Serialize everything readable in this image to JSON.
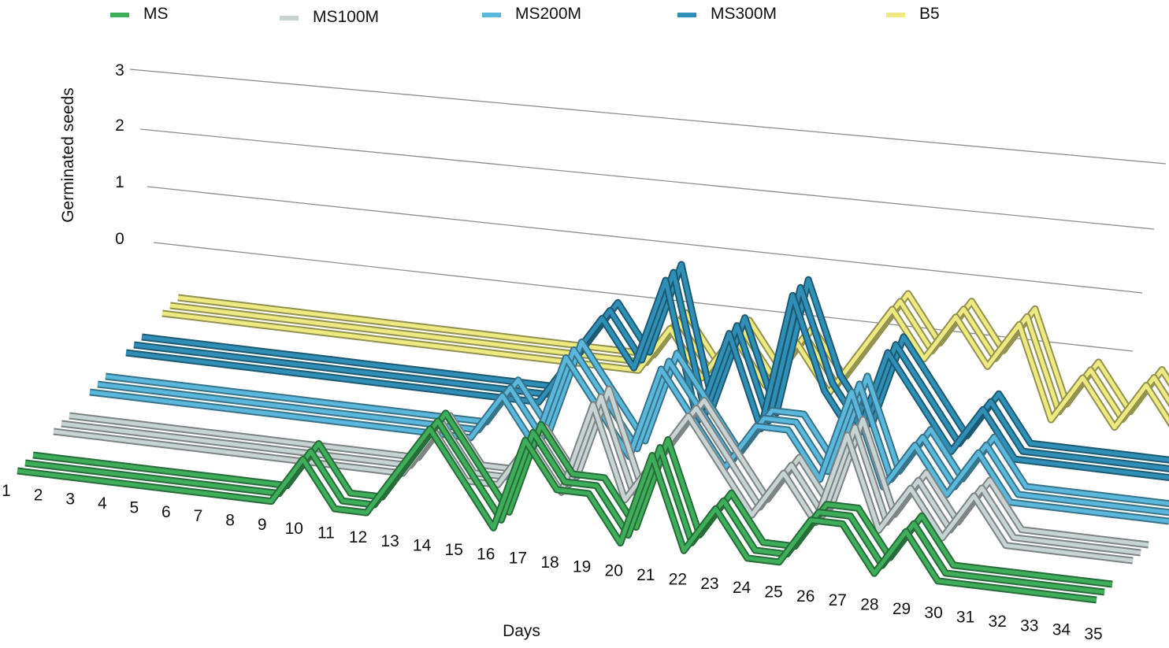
{
  "chart_data": {
    "type": "line",
    "title": "",
    "xlabel": "Days",
    "ylabel": "Germinated seeds",
    "ylim": [
      0,
      3
    ],
    "y_ticks": [
      "3",
      "2",
      "1",
      "0"
    ],
    "x": [
      "1",
      "2",
      "3",
      "4",
      "5",
      "6",
      "7",
      "8",
      "9",
      "10",
      "11",
      "12",
      "13",
      "14",
      "15",
      "16",
      "17",
      "18",
      "19",
      "20",
      "21",
      "22",
      "23",
      "24",
      "25",
      "26",
      "27",
      "28",
      "29",
      "30",
      "31",
      "32",
      "33",
      "34",
      "35"
    ],
    "grid": true,
    "legend_position": "top",
    "series": [
      {
        "name": "MS",
        "color": "#3fae5a",
        "values": [
          0,
          0,
          0,
          0,
          0,
          0,
          0,
          0,
          0,
          1,
          0,
          0,
          1,
          2,
          1,
          0,
          2,
          1,
          1,
          0,
          2,
          0,
          1,
          0,
          0,
          1,
          1,
          0,
          1,
          0,
          0,
          0,
          0,
          0,
          0
        ]
      },
      {
        "name": "MS100M",
        "color": "#c8d3d3",
        "values": [
          0,
          0,
          0,
          0,
          0,
          0,
          0,
          0,
          0,
          0,
          0,
          0,
          1,
          0,
          0,
          1,
          0,
          2,
          0,
          1,
          2,
          1,
          0,
          1,
          0,
          2,
          0,
          1,
          0,
          1,
          0,
          0,
          0,
          0,
          0
        ]
      },
      {
        "name": "MS200M",
        "color": "#5ab8dc",
        "values": [
          0,
          0,
          0,
          0,
          0,
          0,
          0,
          0,
          0,
          0,
          0,
          0,
          0,
          1,
          0,
          2,
          1,
          0,
          2,
          1,
          0,
          1,
          1,
          0,
          2,
          0,
          1,
          0,
          1,
          0,
          0,
          0,
          0,
          0,
          0
        ]
      },
      {
        "name": "MS300M",
        "color": "#2f8fb7",
        "values": [
          0,
          0,
          0,
          0,
          0,
          0,
          0,
          0,
          0,
          0,
          0,
          0,
          0,
          0,
          1,
          2,
          1,
          3,
          0,
          2,
          0,
          3,
          1,
          0,
          2,
          1,
          0,
          1,
          0,
          0,
          0,
          0,
          0,
          0,
          0
        ]
      },
      {
        "name": "B5",
        "color": "#ecea80",
        "values": [
          0,
          0,
          0,
          0,
          0,
          0,
          0,
          0,
          0,
          0,
          0,
          0,
          0,
          0,
          0,
          0,
          1,
          0,
          1,
          0,
          1,
          0,
          1,
          2,
          1,
          2,
          1,
          2,
          0,
          1,
          0,
          1,
          0,
          0,
          0
        ]
      }
    ]
  }
}
